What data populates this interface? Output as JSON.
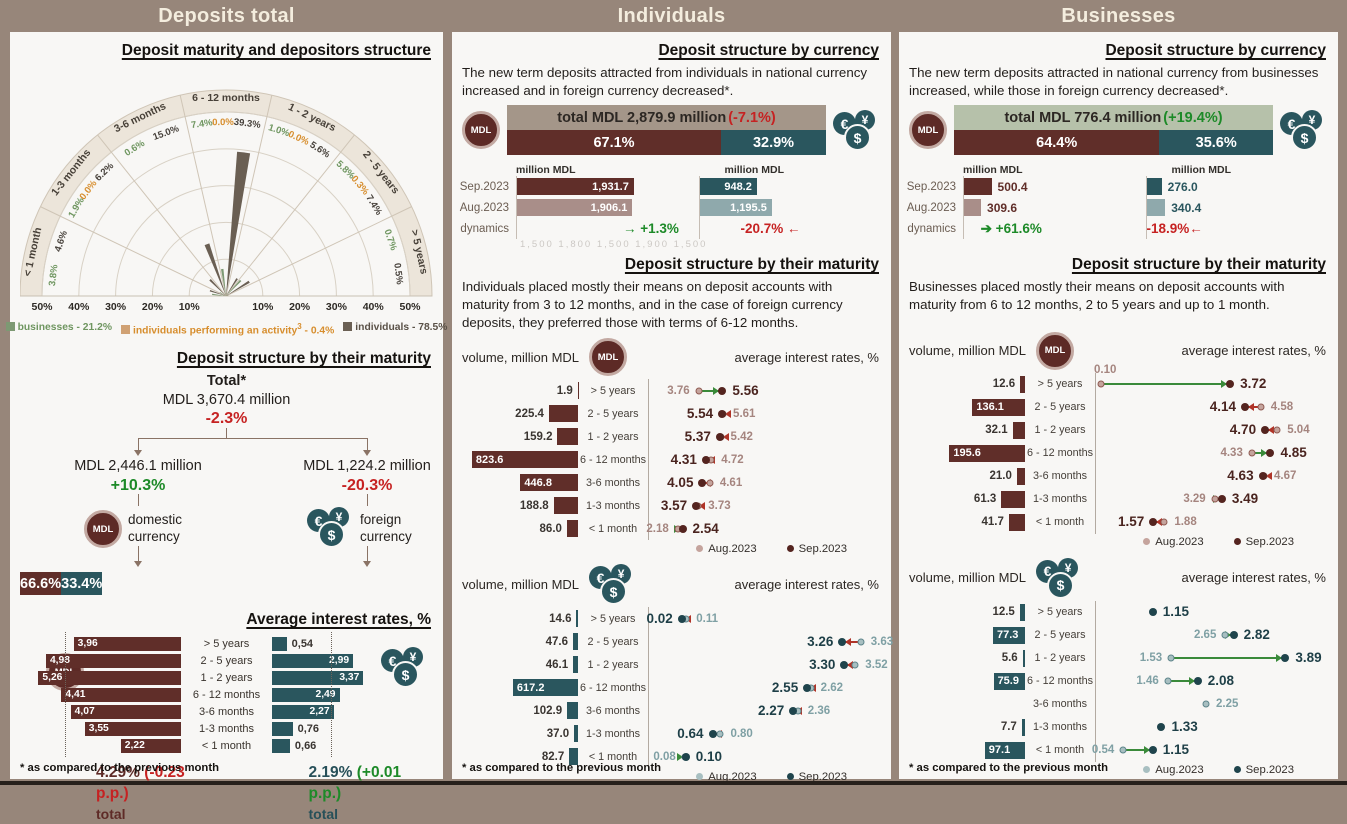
{
  "icons": {
    "mdl": "MDL",
    "eur": "€",
    "yen": "¥",
    "usd": "$"
  },
  "legend_aug": "Aug.2023",
  "legend_sep": "Sep.2023",
  "colors": {
    "taupe": "#97867a",
    "cream": "#f4edde",
    "panel_bg": "#f8f7f5",
    "maroon": "#602e29",
    "maroon_aug": "#a98e89",
    "teal": "#2a565e",
    "teal_aug": "#8fa9ac",
    "red": "#c62222",
    "green": "#1d8a28",
    "arrow_green": "#3a8a3a",
    "arrow_red": "#b03428",
    "orange": "#d78e2e",
    "bus_green": "#7d9973",
    "ind_dark": "#6a5f53",
    "gray_total": "#a49689",
    "sage": "#b6c1aa",
    "mdl_sep_text": "#4a241f",
    "mdl_aug_text": "#a5857f",
    "fx_sep_text": "#1e3f47",
    "fx_aug_text": "#7fa0a4",
    "mdl_aug_fill": "#c5a49d",
    "mdl_aug_ring": "#8f5a52",
    "mdl_sep_fill": "#54241f",
    "fx_aug_fill": "#a8bfc1",
    "fx_aug_ring": "#5d848a",
    "fx_sep_fill": "#1f444c"
  },
  "panels": {
    "total": {
      "header": "Deposits total",
      "structure_title": "Deposit maturity and depositors structure",
      "footnote": "* as compared to the previous month",
      "chart_data": {
        "type": "polar-bar",
        "title": "Deposit maturity and depositors structure",
        "rmax": 50,
        "tick_values": [
          10,
          20,
          30,
          40,
          50
        ],
        "tick_suffix": "%",
        "sectors": [
          {
            "label": "< 1 month",
            "entries": [
              {
                "cat": "bus",
                "v": 3.8,
                "t": "3.8%"
              },
              {
                "cat": "ind",
                "v": 4.6,
                "t": "4.6%"
              }
            ]
          },
          {
            "label": "1-3 months",
            "entries": [
              {
                "cat": "bus",
                "v": 1.9,
                "t": "1.9%"
              },
              {
                "cat": "act",
                "v": 0.0,
                "t": "0.0%"
              },
              {
                "cat": "ind",
                "v": 6.2,
                "t": "6.2%"
              }
            ]
          },
          {
            "label": "3-6 months",
            "entries": [
              {
                "cat": "bus",
                "v": 0.6,
                "t": "0.6%"
              },
              {
                "cat": "ind",
                "v": 15.0,
                "t": "15.0%"
              }
            ]
          },
          {
            "label": "6 - 12 months",
            "entries": [
              {
                "cat": "bus",
                "v": 7.4,
                "t": "7.4%"
              },
              {
                "cat": "act",
                "v": 0.0,
                "t": "0.0%"
              },
              {
                "cat": "ind",
                "v": 39.3,
                "t": "39.3%"
              }
            ]
          },
          {
            "label": "1 - 2 years",
            "entries": [
              {
                "cat": "bus",
                "v": 1.0,
                "t": "1.0%"
              },
              {
                "cat": "act",
                "v": 0.0,
                "t": "0.0%"
              },
              {
                "cat": "ind",
                "v": 5.6,
                "t": "5.6%"
              }
            ]
          },
          {
            "label": "2 - 5 years",
            "entries": [
              {
                "cat": "bus",
                "v": 5.8,
                "t": "5.8%"
              },
              {
                "cat": "act",
                "v": 0.3,
                "t": "0.3%"
              },
              {
                "cat": "ind",
                "v": 7.4,
                "t": "7.4%"
              }
            ]
          },
          {
            "label": "> 5 years",
            "entries": [
              {
                "cat": "bus",
                "v": 0.7,
                "t": "0.7%"
              },
              {
                "cat": "ind",
                "v": 0.5,
                "t": "0.5%"
              }
            ]
          }
        ]
      },
      "legend": [
        {
          "pre": "businesses - 21.2%",
          "sup": "",
          "post": ""
        },
        {
          "pre": "individuals performing an activity",
          "sup": "3",
          "post": " -  0.4%"
        },
        {
          "pre": "individuals - 78.5%",
          "sup": "",
          "post": ""
        }
      ],
      "tree": {
        "title": "Deposit structure by their maturity",
        "total_label": "Total*",
        "total_value": "MDL 3,670.4 million",
        "total_change": "-2.3%",
        "left_value": "MDL 2,446.1 million",
        "left_change": "+10.3%",
        "left_label": "domestic currency",
        "right_value": "MDL 1,224.2 million",
        "right_change": "-20.3%",
        "right_label": "foreign currency",
        "share_mdl": 66.6,
        "share_mdl_label": "66.6%",
        "share_fx": 33.4,
        "share_fx_label": "33.4%"
      },
      "rates": {
        "title": "Average interest rates, %",
        "chart_data": {
          "type": "bar",
          "categories": [
            "> 5 years",
            "2 - 5 years",
            "1 - 2 years",
            "6 - 12 months",
            "3-6 months",
            "1-3 months",
            "< 1 month"
          ],
          "series": [
            {
              "name": "national currency MDL",
              "values": [
                3.96,
                4.98,
                5.26,
                4.41,
                4.07,
                3.55,
                2.22
              ]
            },
            {
              "name": "foreign currency",
              "values": [
                0.54,
                2.99,
                3.37,
                2.49,
                2.27,
                0.76,
                0.66
              ]
            }
          ]
        },
        "mdl_labels": [
          "3,96",
          "4,98",
          "5,26",
          "4,41",
          "4,07",
          "3,55",
          "2,22"
        ],
        "fx_labels": [
          "0,54",
          "2,99",
          "3,37",
          "2,49",
          "2,27",
          "0,76",
          "0,66"
        ],
        "fx_inside": [
          false,
          true,
          true,
          true,
          true,
          false,
          false
        ],
        "scale_full": 5.9,
        "guide_mdl": 4.29,
        "guide_fx": 2.19,
        "mdl_total": "4.29%",
        "mdl_pp": "(-0.23 p.p.)",
        "fx_total": "2.19%",
        "fx_pp": "(+0.01 p.p.)",
        "total_word": "total"
      }
    },
    "individuals": {
      "header": "Individuals",
      "footnote": "* as compared to the previous month",
      "currency": {
        "title": "Deposit structure by currency",
        "desc": "The new term deposits attracted from individuals in national currency increased and in foreign currency decreased*.",
        "total_text": "total MDL 2,879.9 million",
        "total_change": "(-7.1%)",
        "total_change_color": "#c62222",
        "total_bg": "#a49689",
        "share_mdl": 67.1,
        "share_mdl_label": "67.1%",
        "share_fx": 32.9,
        "share_fx_label": "32.9%",
        "col_header": "million MDL",
        "faint_axis": "1,500  1,800  1,500  1,900  1,500",
        "mini": {
          "row_labels": [
            "Sep.2023",
            "Aug.2023",
            "dynamics"
          ],
          "scale_max": 3000,
          "mdl": {
            "sep": 1931.7,
            "sep_label": "1,931.7",
            "aug": 1906.1,
            "aug_label": "1,906.1",
            "inside": true,
            "dyn": "→ +1.3%",
            "dyn_up": true
          },
          "fx": {
            "sep": 948.2,
            "sep_label": "948.2",
            "aug": 1195.5,
            "aug_label": "1,195.5",
            "inside": true,
            "dyn": "-20.7% ←",
            "dyn_up": false
          }
        }
      },
      "maturity": {
        "title": "Deposit structure by their maturity",
        "desc": "Individuals placed mostly their means on deposit accounts with maturity from 3 to 12 months, and in the case of foreign currency deposits, they preferred those with terms of 6-12 months.",
        "vol_header": "volume, million MDL",
        "rate_header": "average interest rates, %",
        "mdl_chart": {
          "type": "bar+dumbbell",
          "vol_max": 900,
          "f0": 0.0,
          "k": 0.0569,
          "rows": [
            {
              "cat": "> 5 years",
              "vol": 1.9,
              "vol_label": "1.9",
              "inside": false,
              "aug": 3.76,
              "aug_label": "3.76",
              "sep": 5.56,
              "sep_label": "5.56"
            },
            {
              "cat": "2 - 5 years",
              "vol": 225.4,
              "vol_label": "225.4",
              "inside": false,
              "aug": 5.61,
              "aug_label": "5.61",
              "sep": 5.54,
              "sep_label": "5.54"
            },
            {
              "cat": "1 - 2 years",
              "vol": 159.2,
              "vol_label": "159.2",
              "inside": false,
              "aug": 5.42,
              "aug_label": "5.42",
              "sep": 5.37,
              "sep_label": "5.37"
            },
            {
              "cat": "6 - 12 months",
              "vol": 823.6,
              "vol_label": "823.6",
              "inside": true,
              "aug": 4.72,
              "aug_label": "4.72",
              "sep": 4.31,
              "sep_label": "4.31"
            },
            {
              "cat": "3-6 months",
              "vol": 446.8,
              "vol_label": "446.8",
              "inside": true,
              "aug": 4.61,
              "aug_label": "4.61",
              "sep": 4.05,
              "sep_label": "4.05"
            },
            {
              "cat": "1-3 months",
              "vol": 188.8,
              "vol_label": "188.8",
              "inside": false,
              "aug": 3.73,
              "aug_label": "3.73",
              "sep": 3.57,
              "sep_label": "3.57"
            },
            {
              "cat": "< 1 month",
              "vol": 86.0,
              "vol_label": "86.0",
              "inside": false,
              "aug": 2.18,
              "aug_label": "2.18",
              "sep": 2.54,
              "sep_label": "2.54"
            }
          ]
        },
        "fx_chart": {
          "type": "bar+dumbbell",
          "vol_max": 1100,
          "f0": 0.137,
          "k": 0.2137,
          "rows": [
            {
              "cat": "> 5 years",
              "vol": 14.6,
              "vol_label": "14.6",
              "inside": false,
              "aug": 0.11,
              "aug_label": "0.11",
              "sep": 0.02,
              "sep_label": "0.02"
            },
            {
              "cat": "2 - 5 years",
              "vol": 47.6,
              "vol_label": "47.6",
              "inside": false,
              "aug": 3.63,
              "aug_label": "3.63",
              "sep": 3.26,
              "sep_label": "3.26"
            },
            {
              "cat": "1 - 2 years",
              "vol": 46.1,
              "vol_label": "46.1",
              "inside": false,
              "aug": 3.52,
              "aug_label": "3.52",
              "sep": 3.3,
              "sep_label": "3.30"
            },
            {
              "cat": "6 - 12 months",
              "vol": 617.2,
              "vol_label": "617.2",
              "inside": true,
              "aug": 2.62,
              "aug_label": "2.62",
              "sep": 2.55,
              "sep_label": "2.55"
            },
            {
              "cat": "3-6 months",
              "vol": 102.9,
              "vol_label": "102.9",
              "inside": false,
              "aug": 2.36,
              "aug_label": "2.36",
              "sep": 2.27,
              "sep_label": "2.27"
            },
            {
              "cat": "1-3 months",
              "vol": 37.0,
              "vol_label": "37.0",
              "inside": false,
              "aug": 0.8,
              "aug_label": "0.80",
              "sep": 0.64,
              "sep_label": "0.64"
            },
            {
              "cat": "< 1 month",
              "vol": 82.7,
              "vol_label": "82.7",
              "inside": false,
              "aug": 0.08,
              "aug_label": "0.08",
              "sep": 0.1,
              "sep_label": "0.10"
            }
          ]
        }
      }
    },
    "businesses": {
      "header": "Businesses",
      "footnote": "* as compared to the previous month",
      "currency": {
        "title": "Deposit structure by currency",
        "desc": "The new term deposits attracted in national currency from businesses increased, while those in foreign currency decreased*.",
        "total_text": "total MDL 776.4 million",
        "total_change": "(+19.4%)",
        "total_change_color": "#1d8a28",
        "total_bg": "#b6c1aa",
        "share_mdl": 64.4,
        "share_mdl_label": "64.4%",
        "share_fx": 35.6,
        "share_fx_label": "35.6%",
        "col_header": "million MDL",
        "faint_axis": "",
        "mini": {
          "row_labels": [
            "Sep.2023",
            "Aug.2023",
            "dynamics"
          ],
          "scale_max": 3300,
          "mdl": {
            "sep": 500.4,
            "sep_label": "500.4",
            "aug": 309.6,
            "aug_label": "309.6",
            "inside": false,
            "dyn": "➔ +61.6%",
            "dyn_up": true
          },
          "fx": {
            "sep": 276.0,
            "sep_label": "276.0",
            "aug": 340.4,
            "aug_label": "340.4",
            "inside": false,
            "dyn": "-18.9%←",
            "dyn_up": false
          }
        }
      },
      "maturity": {
        "title": "Deposit structure by their maturity",
        "desc": "Businesses placed mostly their means on deposit accounts with maturity from 6 to 12 months, 2 to 5 years and up to 1 month.",
        "vol_header": "volume, million MDL",
        "rate_header": "average interest rates, %",
        "mdl_chart": {
          "type": "bar+dumbbell",
          "vol_max": 300,
          "f0": 0.005,
          "k": 0.154,
          "rows": [
            {
              "cat": "> 5 years",
              "vol": 12.6,
              "vol_label": "12.6",
              "inside": false,
              "aug": 0.1,
              "aug_label": "0.10",
              "sep": 3.72,
              "sep_label": "3.72",
              "aug_above": true
            },
            {
              "cat": "2 - 5 years",
              "vol": 136.1,
              "vol_label": "136.1",
              "inside": true,
              "aug": 4.58,
              "aug_label": "4.58",
              "sep": 4.14,
              "sep_label": "4.14"
            },
            {
              "cat": "1 - 2 years",
              "vol": 32.1,
              "vol_label": "32.1",
              "inside": false,
              "aug": 5.04,
              "aug_label": "5.04",
              "sep": 4.7,
              "sep_label": "4.70"
            },
            {
              "cat": "6 - 12 months",
              "vol": 195.6,
              "vol_label": "195.6",
              "inside": true,
              "aug": 4.33,
              "aug_label": "4.33",
              "sep": 4.85,
              "sep_label": "4.85"
            },
            {
              "cat": "3-6 months",
              "vol": 21.0,
              "vol_label": "21.0",
              "inside": false,
              "aug": 4.67,
              "aug_label": "4.67",
              "sep": 4.63,
              "sep_label": "4.63"
            },
            {
              "cat": "1-3 months",
              "vol": 61.3,
              "vol_label": "61.3",
              "inside": false,
              "aug": 3.29,
              "aug_label": "3.29",
              "sep": 3.49,
              "sep_label": "3.49"
            },
            {
              "cat": "< 1 month",
              "vol": 41.7,
              "vol_label": "41.7",
              "inside": false,
              "aug": 1.88,
              "aug_label": "1.88",
              "sep": 1.57,
              "sep_label": "1.57"
            }
          ]
        },
        "fx_chart": {
          "type": "bar+dumbbell",
          "vol_max": 280,
          "f0": 0.005,
          "k": 0.2085,
          "rows": [
            {
              "cat": "> 5 years",
              "vol": 12.5,
              "vol_label": "12.5",
              "inside": false,
              "aug": null,
              "aug_label": "",
              "sep": 1.15,
              "sep_label": "1.15"
            },
            {
              "cat": "2 - 5 years",
              "vol": 77.3,
              "vol_label": "77.3",
              "inside": true,
              "aug": 2.65,
              "aug_label": "2.65",
              "sep": 2.82,
              "sep_label": "2.82"
            },
            {
              "cat": "1 - 2 years",
              "vol": 5.6,
              "vol_label": "5.6",
              "inside": false,
              "aug": 1.53,
              "aug_label": "1.53",
              "sep": 3.89,
              "sep_label": "3.89"
            },
            {
              "cat": "6 - 12 months",
              "vol": 75.9,
              "vol_label": "75.9",
              "inside": true,
              "aug": 1.46,
              "aug_label": "1.46",
              "sep": 2.08,
              "sep_label": "2.08"
            },
            {
              "cat": "3-6 months",
              "vol": null,
              "vol_label": "",
              "inside": false,
              "aug": 2.25,
              "aug_label": "2.25",
              "sep": null,
              "sep_label": ""
            },
            {
              "cat": "1-3 months",
              "vol": 7.7,
              "vol_label": "7.7",
              "inside": false,
              "aug": null,
              "aug_label": "",
              "sep": 1.33,
              "sep_label": "1.33"
            },
            {
              "cat": "< 1 month",
              "vol": 97.1,
              "vol_label": "97.1",
              "inside": true,
              "aug": 0.54,
              "aug_label": "0.54",
              "sep": 1.15,
              "sep_label": "1.15"
            }
          ]
        }
      }
    }
  }
}
